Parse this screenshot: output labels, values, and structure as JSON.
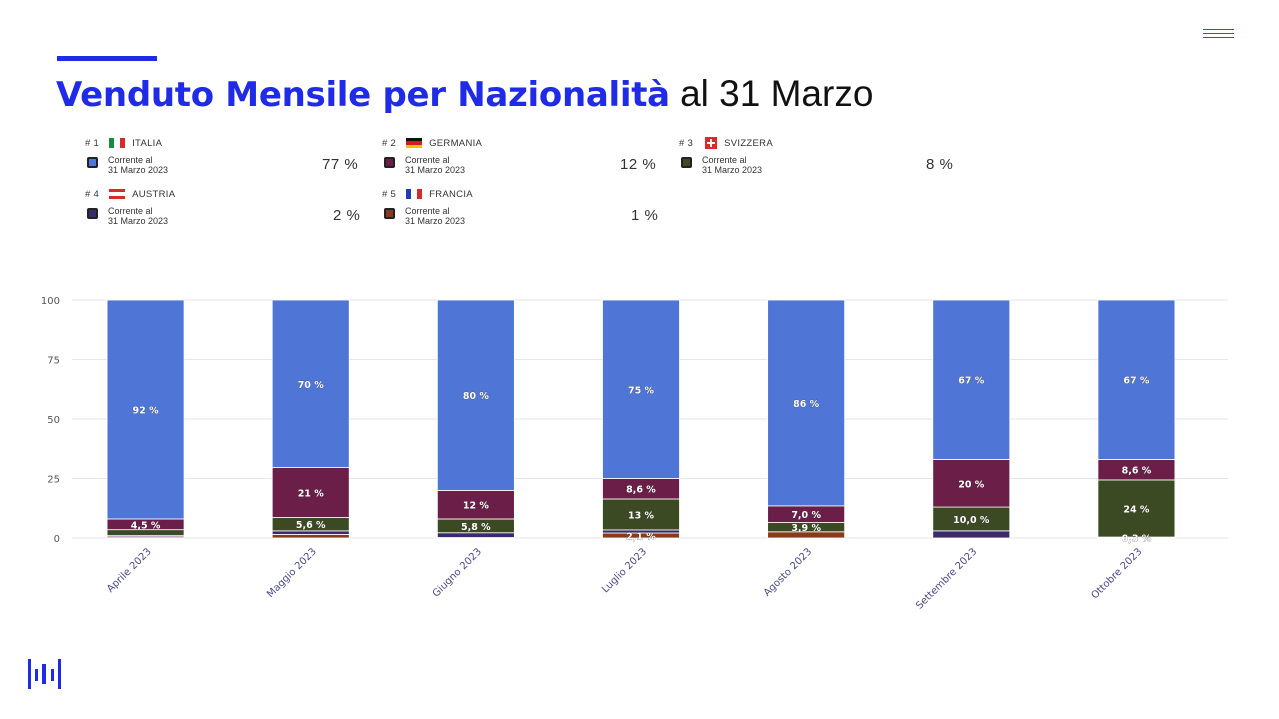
{
  "page": {
    "title_bold": "Venduto Mensile per Nazionalità",
    "title_rest": " al 31 Marzo"
  },
  "legend": [
    {
      "rank": "# 1",
      "country": "ITALIA",
      "flag": "italy-flag",
      "sub1": "Corrente al",
      "sub2": "31 Marzo 2023",
      "pct": "77 %",
      "color": "#4f76d6"
    },
    {
      "rank": "# 2",
      "country": "GERMANIA",
      "flag": "germany-flag",
      "sub1": "Corrente al",
      "sub2": "31 Marzo 2023",
      "pct": "12 %",
      "color": "#6b1f48"
    },
    {
      "rank": "# 3",
      "country": "SVIZZERA",
      "flag": "switzerland-flag",
      "sub1": "Corrente al",
      "sub2": "31 Marzo 2023",
      "pct": "8 %",
      "color": "#3b4a22"
    },
    {
      "rank": "# 4",
      "country": "AUSTRIA",
      "flag": "austria-flag",
      "sub1": "Corrente al",
      "sub2": "31 Marzo 2023",
      "pct": "2 %",
      "color": "#3a2a6b"
    },
    {
      "rank": "# 5",
      "country": "FRANCIA",
      "flag": "france-flag",
      "sub1": "Corrente al",
      "sub2": "31 Marzo 2023",
      "pct": "1 %",
      "color": "#8a3a1a"
    }
  ],
  "chart_data": {
    "type": "bar",
    "stacked": true,
    "categories": [
      "Aprile 2023",
      "Maggio 2023",
      "Giugno 2023",
      "Luglio 2023",
      "Agosto 2023",
      "Settembre 2023",
      "Ottobre 2023"
    ],
    "series": [
      {
        "name": "ITALIA",
        "color": "#4f76d6",
        "values": [
          92,
          70,
          80,
          75,
          86,
          67,
          67
        ],
        "labels": [
          "92 %",
          "70 %",
          "80 %",
          "75 %",
          "86 %",
          "67 %",
          "67 %"
        ]
      },
      {
        "name": "GERMANIA",
        "color": "#6b1f48",
        "values": [
          4.5,
          21,
          12,
          8.6,
          7.0,
          20,
          8.6
        ],
        "labels": [
          "4,5 %",
          "21 %",
          "12 %",
          "8,6 %",
          "7,0 %",
          "20 %",
          "8,6 %"
        ]
      },
      {
        "name": "SVIZZERA",
        "color": "#3b4a22",
        "values": [
          2.5,
          5.6,
          5.8,
          13,
          3.9,
          10.0,
          24
        ],
        "labels": [
          "",
          "5,6 %",
          "5,8 %",
          "13 %",
          "3,9 %",
          "10,0 %",
          "24 %"
        ]
      },
      {
        "name": "AUSTRIA",
        "color": "#3a2a6b",
        "values": [
          0.5,
          1.5,
          2.0,
          1.3,
          0,
          3.0,
          0.3
        ],
        "labels": [
          "",
          "",
          "",
          "",
          "",
          "",
          "0,3 %"
        ]
      },
      {
        "name": "FRANCIA",
        "color": "#8a3a1a",
        "values": [
          0.5,
          1.5,
          0.2,
          2.1,
          2.6,
          0,
          0.1
        ],
        "labels": [
          "",
          "",
          "",
          "2,1 %",
          "",
          "",
          ""
        ]
      }
    ],
    "ylim": [
      0,
      100
    ],
    "yticks": [
      0,
      25,
      50,
      75,
      100
    ],
    "grid": true,
    "legend_position": "top"
  }
}
